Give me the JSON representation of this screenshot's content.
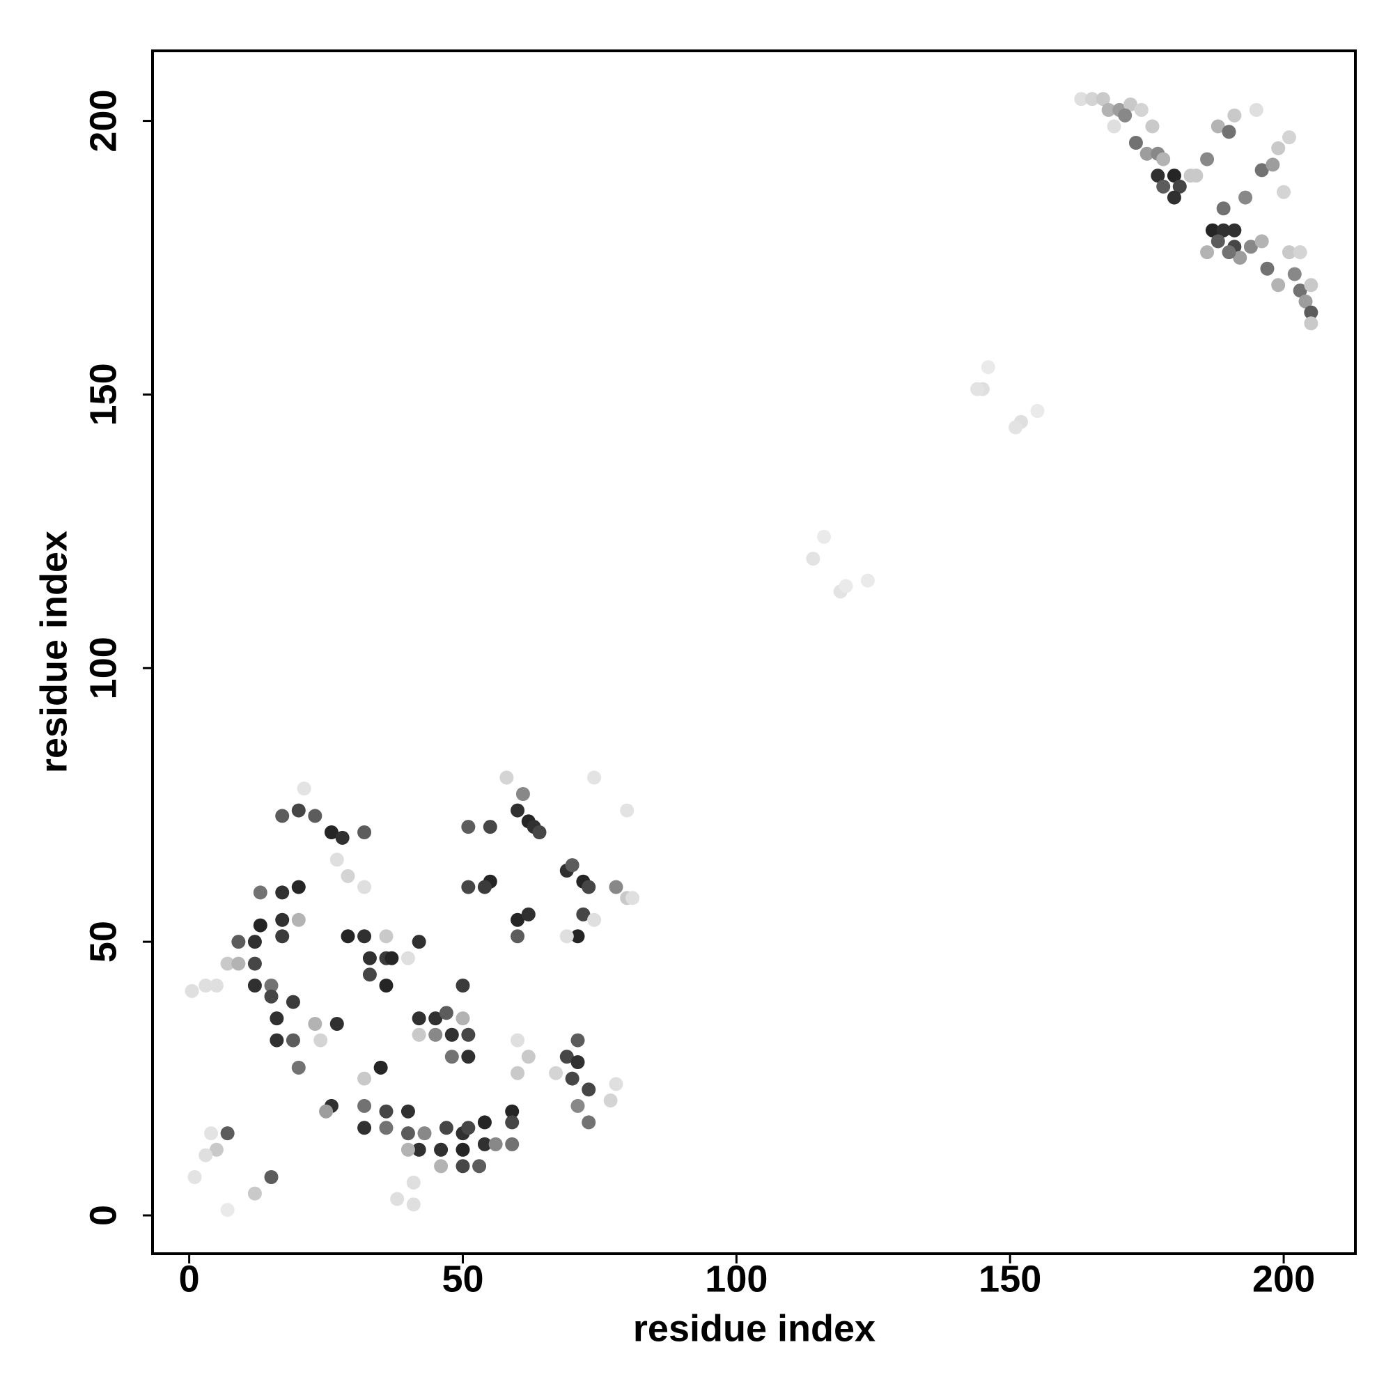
{
  "chart_data": {
    "type": "scatter",
    "xlabel": "residue index",
    "ylabel": "residue index",
    "xlim": [
      -6.7,
      213.1
    ],
    "ylim": [
      -7.0,
      212.8
    ],
    "xticks": [
      0,
      50,
      100,
      150,
      200
    ],
    "yticks": [
      0,
      50,
      100,
      150,
      200
    ],
    "color": "#1a1a1a",
    "x": [
      163,
      165,
      167,
      168,
      170,
      172,
      174,
      169,
      171,
      173,
      175,
      177,
      177,
      178,
      180,
      181,
      180,
      183,
      186,
      188,
      190,
      191,
      193,
      196,
      198,
      199,
      201,
      187,
      189,
      191,
      191,
      192,
      194,
      196,
      197,
      199,
      201,
      202,
      203,
      204,
      205,
      205,
      205,
      203,
      200,
      195,
      189,
      188,
      190,
      186,
      184,
      178,
      176,
      145,
      144,
      152,
      151,
      155,
      146,
      114,
      116,
      119,
      120,
      124,
      0.5,
      3,
      5,
      7,
      9,
      9,
      12,
      12,
      13,
      13,
      17,
      17,
      17,
      20,
      20,
      12,
      15,
      15,
      16,
      19,
      16,
      19,
      20,
      23,
      27,
      24,
      17,
      20,
      23,
      26,
      28,
      32,
      27,
      29,
      21,
      32,
      29,
      32,
      33,
      36,
      37,
      36,
      33,
      36,
      42,
      40,
      42,
      45,
      47,
      50,
      50,
      48,
      51,
      51,
      48,
      45,
      42,
      35,
      32,
      32,
      36,
      32,
      36,
      40,
      40,
      42,
      40,
      43,
      46,
      47,
      50,
      50,
      51,
      54,
      54,
      53,
      50,
      46,
      41,
      41,
      38,
      26,
      25,
      59,
      59,
      59,
      56,
      60,
      62,
      60,
      67,
      69,
      71,
      71,
      70,
      73,
      71,
      73,
      77,
      78,
      69,
      70,
      72,
      73,
      78,
      80,
      81,
      71,
      72,
      69,
      74,
      74,
      80,
      60,
      62,
      63,
      64,
      61,
      58,
      55,
      51,
      55,
      54,
      51,
      60,
      62,
      60,
      1,
      7,
      5,
      3,
      15,
      12,
      7,
      4
    ],
    "y": [
      204,
      204,
      204,
      202,
      202,
      203,
      202,
      199,
      201,
      196,
      194,
      194,
      190,
      188,
      190,
      188,
      186,
      190,
      193,
      199,
      198,
      201,
      186,
      191,
      192,
      195,
      197,
      180,
      180,
      180,
      177,
      175,
      177,
      178,
      173,
      170,
      176,
      172,
      169,
      167,
      170,
      165,
      163,
      176,
      187,
      202,
      184,
      178,
      176,
      176,
      190,
      193,
      199,
      151,
      151,
      145,
      144,
      147,
      155,
      120,
      124,
      114,
      115,
      116,
      41,
      42,
      42,
      46,
      50,
      46,
      50,
      46,
      53,
      59,
      54,
      51,
      59,
      60,
      54,
      42,
      42,
      40,
      36,
      39,
      32,
      32,
      27,
      35,
      35,
      32,
      73,
      74,
      73,
      70,
      69,
      70,
      65,
      62,
      78,
      60,
      51,
      51,
      47,
      47,
      47,
      42,
      44,
      51,
      50,
      47,
      36,
      36,
      37,
      36,
      42,
      33,
      33,
      29,
      29,
      33,
      33,
      27,
      25,
      20,
      19,
      16,
      16,
      19,
      15,
      12,
      12,
      15,
      12,
      16,
      15,
      12,
      16,
      13,
      17,
      9,
      9,
      9,
      6,
      2,
      3,
      20,
      19,
      19,
      17,
      13,
      13,
      32,
      29,
      26,
      26,
      29,
      28,
      32,
      25,
      23,
      20,
      17,
      21,
      24,
      63,
      64,
      61,
      60,
      60,
      58,
      58,
      51,
      55,
      51,
      54,
      80,
      74,
      74,
      72,
      71,
      70,
      77,
      80,
      71,
      71,
      61,
      60,
      60,
      54,
      55,
      51,
      7,
      15,
      12,
      11,
      7,
      4,
      1,
      15
    ],
    "shade": [
      0.1,
      0.15,
      0.2,
      0.3,
      0.4,
      0.2,
      0.15,
      0.1,
      0.5,
      0.6,
      0.4,
      0.5,
      0.9,
      0.7,
      0.95,
      0.8,
      0.9,
      0.2,
      0.5,
      0.3,
      0.6,
      0.2,
      0.5,
      0.6,
      0.4,
      0.2,
      0.15,
      0.95,
      0.9,
      0.9,
      0.8,
      0.4,
      0.5,
      0.3,
      0.6,
      0.3,
      0.2,
      0.5,
      0.6,
      0.4,
      0.2,
      0.7,
      0.2,
      0.15,
      0.15,
      0.1,
      0.6,
      0.7,
      0.6,
      0.3,
      0.2,
      0.3,
      0.2,
      0.1,
      0.08,
      0.1,
      0.08,
      0.05,
      0.05,
      0.08,
      0.05,
      0.08,
      0.05,
      0.05,
      0.1,
      0.1,
      0.1,
      0.2,
      0.7,
      0.3,
      0.9,
      0.8,
      0.95,
      0.6,
      0.9,
      0.85,
      0.9,
      0.95,
      0.3,
      0.9,
      0.6,
      0.8,
      0.9,
      0.85,
      0.9,
      0.7,
      0.6,
      0.3,
      0.9,
      0.15,
      0.7,
      0.8,
      0.7,
      0.95,
      0.9,
      0.7,
      0.1,
      0.15,
      0.08,
      0.1,
      0.95,
      0.9,
      0.9,
      0.85,
      0.95,
      0.95,
      0.8,
      0.2,
      0.9,
      0.1,
      0.9,
      0.9,
      0.7,
      0.3,
      0.85,
      0.9,
      0.8,
      0.9,
      0.6,
      0.5,
      0.2,
      0.95,
      0.2,
      0.6,
      0.8,
      0.9,
      0.6,
      0.9,
      0.7,
      0.9,
      0.3,
      0.5,
      0.9,
      0.8,
      0.9,
      0.95,
      0.8,
      0.9,
      0.95,
      0.7,
      0.8,
      0.3,
      0.1,
      0.1,
      0.1,
      0.9,
      0.4,
      0.95,
      0.8,
      0.6,
      0.5,
      0.1,
      0.2,
      0.2,
      0.15,
      0.8,
      0.9,
      0.7,
      0.8,
      0.8,
      0.5,
      0.6,
      0.15,
      0.1,
      0.9,
      0.7,
      0.95,
      0.8,
      0.5,
      0.2,
      0.1,
      0.95,
      0.8,
      0.1,
      0.1,
      0.08,
      0.08,
      0.9,
      0.95,
      0.9,
      0.8,
      0.5,
      0.15,
      0.8,
      0.7,
      0.95,
      0.85,
      0.8,
      0.95,
      0.9,
      0.7,
      0.08,
      0.7,
      0.2,
      0.1,
      0.7,
      0.2,
      0.05,
      0.08
    ]
  }
}
